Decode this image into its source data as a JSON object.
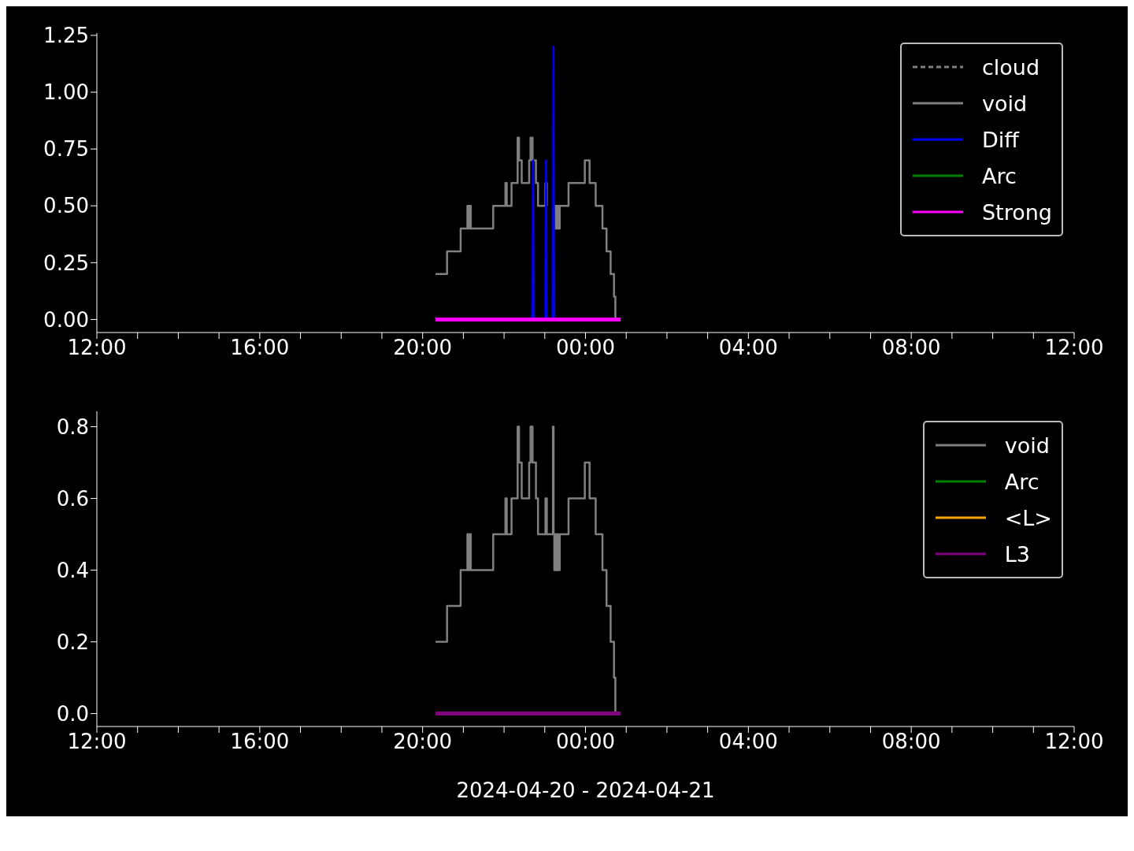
{
  "chart_data": [
    {
      "type": "step",
      "legend": "top right",
      "xlim": [
        "2024-04-20T12:00",
        "2024-04-21T12:00"
      ],
      "ylim": [
        -0.0575,
        1.26
      ],
      "xticks": [
        {
          "value": "2024-04-20T12:00",
          "label": "12:00"
        },
        {
          "value": "2024-04-20T13:00",
          "label": null
        },
        {
          "value": "2024-04-20T14:00",
          "label": null
        },
        {
          "value": "2024-04-20T15:00",
          "label": null
        },
        {
          "value": "2024-04-20T16:00",
          "label": "16:00"
        },
        {
          "value": "2024-04-20T17:00",
          "label": null
        },
        {
          "value": "2024-04-20T18:00",
          "label": null
        },
        {
          "value": "2024-04-20T19:00",
          "label": null
        },
        {
          "value": "2024-04-20T20:00",
          "label": "20:00"
        },
        {
          "value": "2024-04-20T21:00",
          "label": null
        },
        {
          "value": "2024-04-20T22:00",
          "label": null
        },
        {
          "value": "2024-04-20T23:00",
          "label": null
        },
        {
          "value": "2024-04-21T00:00",
          "label": "00:00"
        },
        {
          "value": "2024-04-21T01:00",
          "label": null
        },
        {
          "value": "2024-04-21T02:00",
          "label": null
        },
        {
          "value": "2024-04-21T03:00",
          "label": null
        },
        {
          "value": "2024-04-21T04:00",
          "label": "04:00"
        },
        {
          "value": "2024-04-21T05:00",
          "label": null
        },
        {
          "value": "2024-04-21T06:00",
          "label": null
        },
        {
          "value": "2024-04-21T07:00",
          "label": null
        },
        {
          "value": "2024-04-21T08:00",
          "label": "08:00"
        },
        {
          "value": "2024-04-21T09:00",
          "label": null
        },
        {
          "value": "2024-04-21T10:00",
          "label": null
        },
        {
          "value": "2024-04-21T11:00",
          "label": null
        },
        {
          "value": "2024-04-21T12:00",
          "label": "12:00"
        }
      ],
      "yticks": [
        {
          "value": 0,
          "label": "0.00"
        },
        {
          "value": 0.25,
          "label": "0.25"
        },
        {
          "value": 0.5,
          "label": "0.50"
        },
        {
          "value": 0.75,
          "label": "0.75"
        },
        {
          "value": 1,
          "label": "1.00"
        },
        {
          "value": 1.25,
          "label": "1.25"
        }
      ],
      "series": [
        {
          "name": "cloud",
          "color": "#808080",
          "line_style": "dashed"
        },
        {
          "name": "void",
          "color": "#808080",
          "x": [
            "2024-04-20T20:19",
            "2024-04-20T20:36",
            "2024-04-20T20:56",
            "2024-04-20T21:06",
            "2024-04-20T21:08",
            "2024-04-20T21:09",
            "2024-04-20T21:11",
            "2024-04-20T21:44",
            "2024-04-20T22:02",
            "2024-04-20T22:04",
            "2024-04-20T22:11",
            "2024-04-20T22:20",
            "2024-04-20T22:22",
            "2024-04-20T22:26",
            "2024-04-20T22:37",
            "2024-04-20T22:39",
            "2024-04-20T22:42",
            "2024-04-20T22:47",
            "2024-04-20T22:50",
            "2024-04-20T23:01",
            "2024-04-20T23:03",
            "2024-04-20T23:12",
            "2024-04-20T23:13",
            "2024-04-20T23:14",
            "2024-04-20T23:15",
            "2024-04-20T23:17",
            "2024-04-20T23:18",
            "2024-04-20T23:20",
            "2024-04-20T23:22",
            "2024-04-20T23:35",
            "2024-04-20T23:59",
            "2024-04-21T00:06",
            "2024-04-21T00:15",
            "2024-04-21T00:25",
            "2024-04-21T00:31",
            "2024-04-21T00:37",
            "2024-04-21T00:42",
            "2024-04-21T00:44"
          ],
          "values": [
            0.2,
            0.3,
            0.4,
            0.5,
            0.4,
            0.5,
            0.4,
            0.5,
            0.6,
            0.5,
            0.6,
            0.8,
            0.7,
            0.6,
            0.7,
            0.8,
            0.7,
            0.6,
            0.5,
            0.6,
            0.5,
            null,
            0.5,
            0.4,
            0.5,
            0.4,
            0.5,
            0.4,
            0.5,
            0.6,
            0.7,
            0.6,
            0.5,
            0.4,
            0.3,
            0.2,
            0.1,
            0
          ]
        },
        {
          "name": "Diff",
          "color": "#0000ff",
          "type": "line",
          "x": [
            "2024-04-20T22:42",
            "2024-04-20T22:43",
            "2024-04-20T22:44",
            "2024-04-20T22:50",
            "2024-04-20T23:01",
            "2024-04-20T23:02",
            "2024-04-20T23:03",
            "2024-04-20T23:07",
            "2024-04-20T23:12",
            "2024-04-20T23:13",
            "2024-04-20T23:14"
          ],
          "values": [
            0,
            0.7,
            0,
            null,
            0,
            0.7,
            0,
            null,
            0,
            1.2,
            0
          ]
        },
        {
          "name": "Arc",
          "color": "#008000"
        },
        {
          "name": "Strong",
          "color": "#ff00ff",
          "x": [
            "2024-04-20T20:19",
            "2024-04-21T00:52"
          ],
          "values": [
            0,
            0
          ]
        }
      ]
    },
    {
      "type": "step",
      "legend": "top right",
      "xlabel": "2024-04-20 - 2024-04-21",
      "xlim": [
        "2024-04-20T12:00",
        "2024-04-21T12:00"
      ],
      "ylim": [
        -0.036,
        0.843
      ],
      "xticks": [
        {
          "value": "2024-04-20T12:00",
          "label": "12:00"
        },
        {
          "value": "2024-04-20T13:00",
          "label": null
        },
        {
          "value": "2024-04-20T14:00",
          "label": null
        },
        {
          "value": "2024-04-20T15:00",
          "label": null
        },
        {
          "value": "2024-04-20T16:00",
          "label": "16:00"
        },
        {
          "value": "2024-04-20T17:00",
          "label": null
        },
        {
          "value": "2024-04-20T18:00",
          "label": null
        },
        {
          "value": "2024-04-20T19:00",
          "label": null
        },
        {
          "value": "2024-04-20T20:00",
          "label": "20:00"
        },
        {
          "value": "2024-04-20T21:00",
          "label": null
        },
        {
          "value": "2024-04-20T22:00",
          "label": null
        },
        {
          "value": "2024-04-20T23:00",
          "label": null
        },
        {
          "value": "2024-04-21T00:00",
          "label": "00:00"
        },
        {
          "value": "2024-04-21T01:00",
          "label": null
        },
        {
          "value": "2024-04-21T02:00",
          "label": null
        },
        {
          "value": "2024-04-21T03:00",
          "label": null
        },
        {
          "value": "2024-04-21T04:00",
          "label": "04:00"
        },
        {
          "value": "2024-04-21T05:00",
          "label": null
        },
        {
          "value": "2024-04-21T06:00",
          "label": null
        },
        {
          "value": "2024-04-21T07:00",
          "label": null
        },
        {
          "value": "2024-04-21T08:00",
          "label": "08:00"
        },
        {
          "value": "2024-04-21T09:00",
          "label": null
        },
        {
          "value": "2024-04-21T10:00",
          "label": null
        },
        {
          "value": "2024-04-21T11:00",
          "label": null
        },
        {
          "value": "2024-04-21T12:00",
          "label": "12:00"
        }
      ],
      "yticks": [
        {
          "value": 0,
          "label": "0.0"
        },
        {
          "value": 0.2,
          "label": "0.2"
        },
        {
          "value": 0.4,
          "label": "0.4"
        },
        {
          "value": 0.6,
          "label": "0.6"
        },
        {
          "value": 0.8,
          "label": "0.8"
        }
      ],
      "series": [
        {
          "name": "void",
          "color": "#808080",
          "x": [
            "2024-04-20T20:19",
            "2024-04-20T20:36",
            "2024-04-20T20:56",
            "2024-04-20T21:06",
            "2024-04-20T21:08",
            "2024-04-20T21:09",
            "2024-04-20T21:11",
            "2024-04-20T21:44",
            "2024-04-20T22:02",
            "2024-04-20T22:04",
            "2024-04-20T22:11",
            "2024-04-20T22:20",
            "2024-04-20T22:22",
            "2024-04-20T22:26",
            "2024-04-20T22:37",
            "2024-04-20T22:39",
            "2024-04-20T22:42",
            "2024-04-20T22:47",
            "2024-04-20T22:50",
            "2024-04-20T23:01",
            "2024-04-20T23:03",
            "2024-04-20T23:12",
            "2024-04-20T23:13",
            "2024-04-20T23:14",
            "2024-04-20T23:15",
            "2024-04-20T23:17",
            "2024-04-20T23:18",
            "2024-04-20T23:20",
            "2024-04-20T23:22",
            "2024-04-20T23:35",
            "2024-04-20T23:59",
            "2024-04-21T00:06",
            "2024-04-21T00:15",
            "2024-04-21T00:25",
            "2024-04-21T00:31",
            "2024-04-21T00:37",
            "2024-04-21T00:42",
            "2024-04-21T00:44"
          ],
          "values": [
            0.2,
            0.3,
            0.4,
            0.5,
            0.4,
            0.5,
            0.4,
            0.5,
            0.6,
            0.5,
            0.6,
            0.8,
            0.7,
            0.6,
            0.7,
            0.8,
            0.7,
            0.6,
            0.5,
            0.6,
            0.5,
            0.8,
            0.5,
            0.4,
            0.5,
            0.4,
            0.5,
            0.4,
            0.5,
            0.6,
            0.7,
            0.6,
            0.5,
            0.4,
            0.3,
            0.2,
            0.1,
            0
          ]
        },
        {
          "name": "Arc",
          "color": "#008000"
        },
        {
          "name": "<L>",
          "color": "#ffa500"
        },
        {
          "name": "L3",
          "color": "#800080",
          "x": [
            "2024-04-20T20:19",
            "2024-04-21T00:52"
          ],
          "values": [
            0,
            0
          ]
        }
      ]
    }
  ]
}
